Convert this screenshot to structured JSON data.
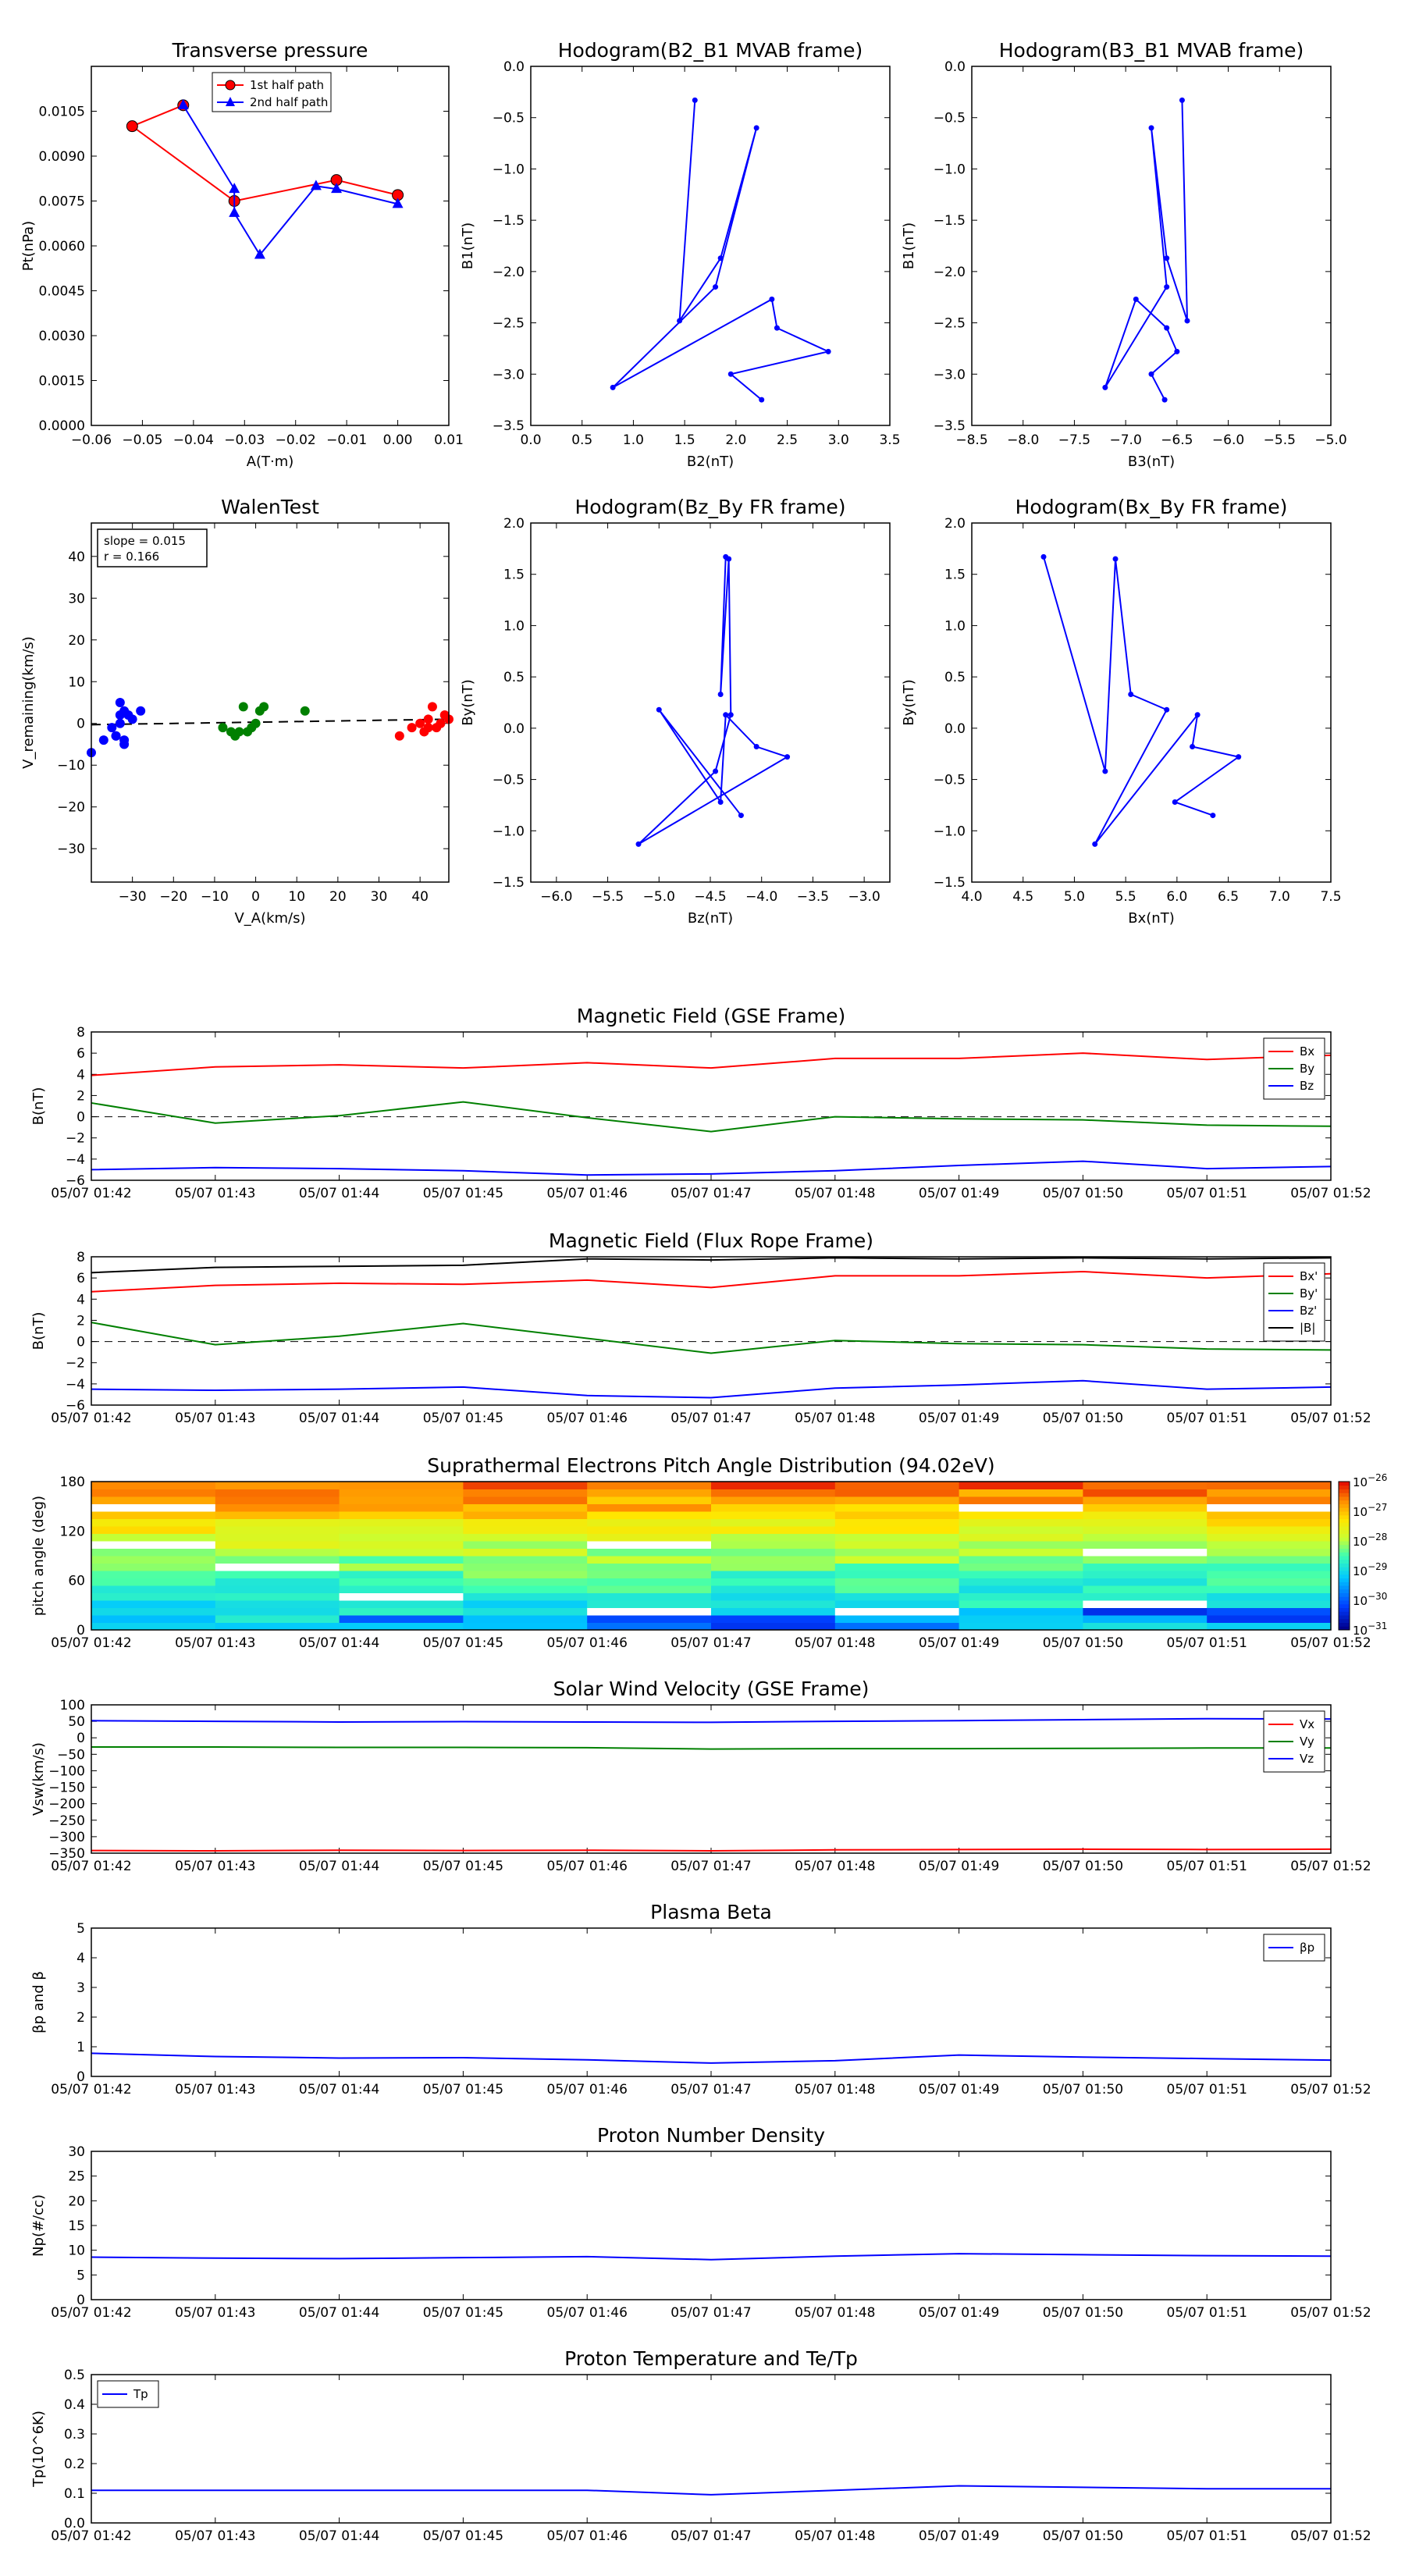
{
  "chart_data": [
    {
      "id": "transverse-pressure",
      "type": "line",
      "title": "Transverse pressure",
      "xlabel": "A(T·m)",
      "ylabel": "Pt(nPa)",
      "xlim": [
        -0.06,
        0.01
      ],
      "ylim": [
        0,
        0.012
      ],
      "xticks": [
        "-0.06",
        "-0.05",
        "-0.04",
        "-0.03",
        "-0.02",
        "-0.01",
        "0.00",
        "0.01"
      ],
      "yticks": [
        "0.0000",
        "0.0015",
        "0.0030",
        "0.0045",
        "0.0060",
        "0.0075",
        "0.0090",
        "0.0105"
      ],
      "legend_position": "top-center",
      "series": [
        {
          "name": "1st half path",
          "color": "#ff0000",
          "marker": "circle",
          "x": [
            0.0,
            -0.012,
            -0.032,
            -0.052,
            -0.042
          ],
          "y": [
            0.0077,
            0.0082,
            0.0075,
            0.01,
            0.0107
          ]
        },
        {
          "name": "2nd half path",
          "color": "#0000ff",
          "marker": "triangle",
          "x": [
            -0.042,
            -0.032,
            -0.032,
            -0.027,
            -0.016,
            -0.012,
            0.0
          ],
          "y": [
            0.0107,
            0.0079,
            0.0071,
            0.0057,
            0.008,
            0.0079,
            0.0074
          ]
        }
      ]
    },
    {
      "id": "hodogram-b2-b1",
      "type": "line",
      "title": "Hodogram(B2_B1 MVAB frame)",
      "xlabel": "B2(nT)",
      "ylabel": "B1(nT)",
      "xlim": [
        0.0,
        3.5
      ],
      "ylim": [
        -3.5,
        0.0
      ],
      "xticks": [
        "0.0",
        "0.5",
        "1.0",
        "1.5",
        "2.0",
        "2.5",
        "3.0",
        "3.5"
      ],
      "yticks": [
        "-3.5",
        "-3.0",
        "-2.5",
        "-2.0",
        "-1.5",
        "-1.0",
        "-0.5",
        "0.0"
      ],
      "series": [
        {
          "color": "#0000ff",
          "marker": "dot",
          "x": [
            1.6,
            1.45,
            1.85,
            2.2,
            1.8,
            0.8,
            2.35,
            2.4,
            2.9,
            1.95,
            2.25
          ],
          "y": [
            -0.33,
            -2.48,
            -1.87,
            -0.6,
            -2.15,
            -3.13,
            -2.27,
            -2.55,
            -2.78,
            -3.0,
            -3.25
          ]
        }
      ]
    },
    {
      "id": "hodogram-b3-b1",
      "type": "line",
      "title": "Hodogram(B3_B1 MVAB frame)",
      "xlabel": "B3(nT)",
      "ylabel": "B1(nT)",
      "xlim": [
        -8.5,
        -5.0
      ],
      "ylim": [
        -3.5,
        0.0
      ],
      "xticks": [
        "-8.5",
        "-8.0",
        "-7.5",
        "-7.0",
        "-6.5",
        "-6.0",
        "-5.5",
        "-5.0"
      ],
      "yticks": [
        "-3.5",
        "-3.0",
        "-2.5",
        "-2.0",
        "-1.5",
        "-1.0",
        "-0.5",
        "0.0"
      ],
      "series": [
        {
          "color": "#0000ff",
          "marker": "dot",
          "x": [
            -6.45,
            -6.4,
            -6.6,
            -6.75,
            -6.6,
            -7.2,
            -6.9,
            -6.6,
            -6.5,
            -6.75,
            -6.62
          ],
          "y": [
            -0.33,
            -2.48,
            -1.87,
            -0.6,
            -2.15,
            -3.13,
            -2.27,
            -2.55,
            -2.78,
            -3.0,
            -3.25
          ]
        }
      ]
    },
    {
      "id": "walen-test",
      "type": "scatter",
      "title": "WalenTest",
      "xlabel": "V_A(km/s)",
      "ylabel": "V_remaining(km/s)",
      "xlim": [
        -40,
        47
      ],
      "ylim": [
        -38,
        48
      ],
      "xticks": [
        "-30",
        "-20",
        "-10",
        "0",
        "10",
        "20",
        "30",
        "40"
      ],
      "yticks": [
        "-30",
        "-20",
        "-10",
        "0",
        "10",
        "20",
        "30",
        "40"
      ],
      "annotations": [
        "slope = 0.015",
        "r = 0.166"
      ],
      "fit_line": {
        "slope": 0.015,
        "intercept": 0.3
      },
      "series": [
        {
          "color": "#0000ff",
          "x": [
            -40,
            -37,
            -35,
            -34,
            -33,
            -33,
            -32,
            -32,
            -31,
            -30,
            -28,
            -32,
            -34,
            -33
          ],
          "y": [
            -7,
            -4,
            -1,
            -3,
            2,
            5,
            3,
            -4,
            2,
            1,
            3,
            -5,
            -3,
            0
          ]
        },
        {
          "color": "#008000",
          "x": [
            -8,
            -6,
            -5,
            -3,
            -2,
            -1,
            0,
            1,
            2,
            12,
            -4
          ],
          "y": [
            -1,
            -2,
            -3,
            4,
            -2,
            -1,
            0,
            3,
            4,
            3,
            -2
          ]
        },
        {
          "color": "#ff0000",
          "x": [
            35,
            38,
            40,
            41,
            42,
            42,
            43,
            44,
            45,
            46,
            47
          ],
          "y": [
            -3,
            -1,
            0,
            -2,
            -1,
            1,
            4,
            -1,
            0,
            2,
            1
          ]
        }
      ]
    },
    {
      "id": "hodogram-bz-by",
      "type": "line",
      "title": "Hodogram(Bz_By FR frame)",
      "xlabel": "Bz(nT)",
      "ylabel": "By(nT)",
      "xlim": [
        -6.25,
        -2.75
      ],
      "ylim": [
        -1.5,
        2.0
      ],
      "xticks": [
        "-6.0",
        "-5.5",
        "-5.0",
        "-4.5",
        "-4.0",
        "-3.5",
        "-3.0"
      ],
      "yticks": [
        "-1.5",
        "-1.0",
        "-0.5",
        "0.0",
        "0.5",
        "1.0",
        "1.5",
        "2.0"
      ],
      "series": [
        {
          "color": "#0000ff",
          "marker": "dot",
          "x": [
            -4.35,
            -4.4,
            -4.32,
            -4.3,
            -4.45,
            -5.2,
            -3.75,
            -4.05,
            -4.35,
            -4.4,
            -5.0,
            -4.2
          ],
          "y": [
            1.67,
            0.33,
            1.65,
            0.13,
            -0.42,
            -1.13,
            -0.28,
            -0.18,
            0.13,
            -0.72,
            0.18,
            -0.85
          ]
        }
      ]
    },
    {
      "id": "hodogram-bx-by",
      "type": "line",
      "title": "Hodogram(Bx_By FR frame)",
      "xlabel": "Bx(nT)",
      "ylabel": "By(nT)",
      "xlim": [
        4.0,
        7.5
      ],
      "ylim": [
        -1.5,
        2.0
      ],
      "xticks": [
        "4.0",
        "4.5",
        "5.0",
        "5.5",
        "6.0",
        "6.5",
        "7.0",
        "7.5"
      ],
      "yticks": [
        "-1.5",
        "-1.0",
        "-0.5",
        "0.0",
        "0.5",
        "1.0",
        "1.5",
        "2.0"
      ],
      "series": [
        {
          "color": "#0000ff",
          "marker": "dot",
          "x": [
            4.7,
            5.3,
            5.4,
            5.55,
            5.9,
            5.2,
            6.2,
            6.15,
            6.6,
            5.98,
            6.35
          ],
          "y": [
            1.67,
            -0.42,
            1.65,
            0.33,
            0.18,
            -1.13,
            0.13,
            -0.18,
            -0.28,
            -0.72,
            -0.85
          ]
        }
      ]
    },
    {
      "id": "magnetic-field-gse",
      "type": "line",
      "title": "Magnetic Field (GSE Frame)",
      "xlabel": "",
      "ylabel": "B(nT)",
      "x": [
        "05/07 01:42",
        "05/07 01:43",
        "05/07 01:44",
        "05/07 01:45",
        "05/07 01:46",
        "05/07 01:47",
        "05/07 01:48",
        "05/07 01:49",
        "05/07 01:50",
        "05/07 01:51",
        "05/07 01:52"
      ],
      "ylim": [
        -6,
        8
      ],
      "yticks": [
        "-6",
        "-4",
        "-2",
        "0",
        "2",
        "4",
        "6",
        "8"
      ],
      "zero_line": true,
      "legend_position": "top-right",
      "series": [
        {
          "name": "Bx",
          "color": "#ff0000",
          "values": [
            3.9,
            4.7,
            4.9,
            4.6,
            5.1,
            4.6,
            5.5,
            5.5,
            6.0,
            5.4,
            5.8
          ]
        },
        {
          "name": "By",
          "color": "#008000",
          "values": [
            1.3,
            -0.6,
            0.1,
            1.4,
            -0.1,
            -1.4,
            0.0,
            -0.2,
            -0.3,
            -0.8,
            -0.9
          ]
        },
        {
          "name": "Bz",
          "color": "#0000ff",
          "values": [
            -5.0,
            -4.8,
            -4.9,
            -5.1,
            -5.5,
            -5.4,
            -5.1,
            -4.6,
            -4.2,
            -4.9,
            -4.7
          ]
        }
      ]
    },
    {
      "id": "magnetic-field-flux-rope",
      "type": "line",
      "title": "Magnetic Field (Flux Rope Frame)",
      "xlabel": "",
      "ylabel": "B(nT)",
      "x": [
        "05/07 01:42",
        "05/07 01:43",
        "05/07 01:44",
        "05/07 01:45",
        "05/07 01:46",
        "05/07 01:47",
        "05/07 01:48",
        "05/07 01:49",
        "05/07 01:50",
        "05/07 01:51",
        "05/07 01:52"
      ],
      "ylim": [
        -6,
        8
      ],
      "yticks": [
        "-6",
        "-4",
        "-2",
        "0",
        "2",
        "4",
        "6",
        "8"
      ],
      "zero_line": true,
      "legend_position": "top-right",
      "series": [
        {
          "name": "Bx'",
          "color": "#ff0000",
          "values": [
            4.7,
            5.3,
            5.5,
            5.4,
            5.8,
            5.1,
            6.2,
            6.2,
            6.6,
            6.0,
            6.4
          ]
        },
        {
          "name": "By'",
          "color": "#008000",
          "values": [
            1.8,
            -0.3,
            0.5,
            1.7,
            0.3,
            -1.1,
            0.1,
            -0.2,
            -0.3,
            -0.7,
            -0.8
          ]
        },
        {
          "name": "Bz'",
          "color": "#0000ff",
          "values": [
            -4.5,
            -4.6,
            -4.5,
            -4.3,
            -5.1,
            -5.3,
            -4.4,
            -4.1,
            -3.7,
            -4.5,
            -4.3
          ]
        },
        {
          "name": "|B|",
          "color": "#000000",
          "values": [
            6.5,
            7.0,
            7.1,
            7.2,
            7.8,
            7.7,
            7.9,
            7.8,
            7.9,
            7.8,
            7.9
          ]
        }
      ]
    },
    {
      "id": "pitch-angle-distribution",
      "type": "heatmap",
      "title": "Suprathermal Electrons Pitch Angle Distribution (94.02eV)",
      "xlabel": "",
      "ylabel": "pitch angle (deg)",
      "x": [
        "05/07 01:42",
        "05/07 01:43",
        "05/07 01:44",
        "05/07 01:45",
        "05/07 01:46",
        "05/07 01:47",
        "05/07 01:48",
        "05/07 01:49",
        "05/07 01:50",
        "05/07 01:51",
        "05/07 01:52"
      ],
      "ylim": [
        0,
        180
      ],
      "yticks": [
        "0",
        "60",
        "120",
        "180"
      ],
      "colorbar_ticks": [
        "10^-31",
        "10^-30",
        "10^-29",
        "10^-28",
        "10^-27",
        "10^-26"
      ],
      "pitch_bins": 20,
      "time_bins": 10,
      "log_values_note_removed": true
    },
    {
      "id": "solar-wind-velocity",
      "type": "line",
      "title": "Solar Wind Velocity (GSE Frame)",
      "xlabel": "",
      "ylabel": "Vsw(km/s)",
      "x": [
        "05/07 01:42",
        "05/07 01:43",
        "05/07 01:44",
        "05/07 01:45",
        "05/07 01:46",
        "05/07 01:47",
        "05/07 01:48",
        "05/07 01:49",
        "05/07 01:50",
        "05/07 01:51",
        "05/07 01:52"
      ],
      "ylim": [
        -350,
        100
      ],
      "yticks": [
        "-350",
        "-300",
        "-250",
        "-200",
        "-150",
        "-100",
        "-50",
        "0",
        "50",
        "100"
      ],
      "legend_position": "top-right",
      "series": [
        {
          "name": "Vx",
          "color": "#ff0000",
          "values": [
            -342,
            -343,
            -341,
            -342,
            -341,
            -343,
            -340,
            -339,
            -338,
            -339,
            -338
          ]
        },
        {
          "name": "Vy",
          "color": "#008000",
          "values": [
            -28,
            -28,
            -29,
            -29,
            -30,
            -34,
            -33,
            -33,
            -32,
            -31,
            -31
          ]
        },
        {
          "name": "Vz",
          "color": "#0000ff",
          "values": [
            52,
            50,
            48,
            49,
            48,
            47,
            50,
            52,
            55,
            58,
            57
          ]
        }
      ]
    },
    {
      "id": "plasma-beta",
      "type": "line",
      "title": "Plasma Beta",
      "xlabel": "",
      "ylabel": "βp and β",
      "x": [
        "05/07 01:42",
        "05/07 01:43",
        "05/07 01:44",
        "05/07 01:45",
        "05/07 01:46",
        "05/07 01:47",
        "05/07 01:48",
        "05/07 01:49",
        "05/07 01:50",
        "05/07 01:51",
        "05/07 01:52"
      ],
      "ylim": [
        0,
        5
      ],
      "yticks": [
        "0",
        "1",
        "2",
        "3",
        "4",
        "5"
      ],
      "legend_position": "top-right",
      "series": [
        {
          "name": "βp",
          "color": "#0000ff",
          "values": [
            0.78,
            0.67,
            0.62,
            0.63,
            0.56,
            0.45,
            0.53,
            0.72,
            0.65,
            0.6,
            0.55
          ]
        }
      ]
    },
    {
      "id": "proton-number-density",
      "type": "line",
      "title": "Proton Number Density",
      "xlabel": "",
      "ylabel": "Np(#/cc)",
      "x": [
        "05/07 01:42",
        "05/07 01:43",
        "05/07 01:44",
        "05/07 01:45",
        "05/07 01:46",
        "05/07 01:47",
        "05/07 01:48",
        "05/07 01:49",
        "05/07 01:50",
        "05/07 01:51",
        "05/07 01:52"
      ],
      "ylim": [
        0,
        30
      ],
      "yticks": [
        "0",
        "5",
        "10",
        "15",
        "20",
        "25",
        "30"
      ],
      "series": [
        {
          "color": "#0000ff",
          "values": [
            8.6,
            8.4,
            8.3,
            8.5,
            8.7,
            8.1,
            8.8,
            9.3,
            9.1,
            8.9,
            8.8
          ]
        }
      ]
    },
    {
      "id": "proton-temperature",
      "type": "line",
      "title": "Proton Temperature and Te/Tp",
      "xlabel": "",
      "ylabel": "Tp(10^6K)",
      "x": [
        "05/07 01:42",
        "05/07 01:43",
        "05/07 01:44",
        "05/07 01:45",
        "05/07 01:46",
        "05/07 01:47",
        "05/07 01:48",
        "05/07 01:49",
        "05/07 01:50",
        "05/07 01:51",
        "05/07 01:52"
      ],
      "ylim": [
        0,
        0.5
      ],
      "yticks": [
        "0.0",
        "0.1",
        "0.2",
        "0.3",
        "0.4",
        "0.5"
      ],
      "legend_position": "top-left",
      "series": [
        {
          "name": "Tp",
          "color": "#0000ff",
          "values": [
            0.11,
            0.11,
            0.11,
            0.11,
            0.11,
            0.095,
            0.11,
            0.125,
            0.12,
            0.115,
            0.115
          ]
        }
      ]
    }
  ]
}
